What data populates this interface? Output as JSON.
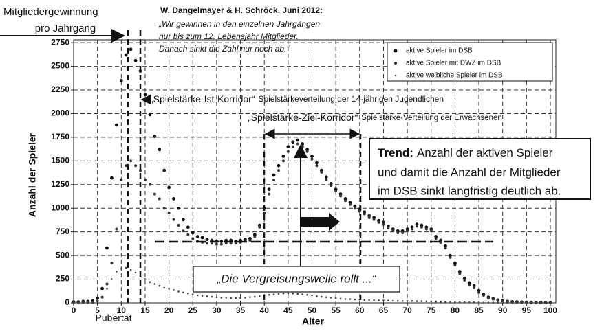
{
  "chart_data": {
    "type": "scatter",
    "header": {
      "line1": "Mitgliedergewinnung",
      "line2": "pro Jahrgang"
    },
    "author": "W. Dangelmayer & H. Schröck, Juni 2012:",
    "quote": [
      "„Wir gewinnen in den einzelnen Jahrgängen",
      "nur bis zum 12. Lebensjahr Mitglieder.",
      "Danach sinkt die Zahl nur noch ab.“"
    ],
    "ist_corridor": {
      "name": "„Spielstärke-Ist-Korridor“",
      "text": "Spielstärkeverteilung der 14-jährigen Jugendlichen"
    },
    "ziel_corridor": {
      "name": "„Spielstärke-Ziel-Korridor“",
      "text": "Spielstärke-Verteilung der Erwachsenen"
    },
    "trend": {
      "label": "Trend:",
      "lines": [
        "Anzahl der aktiven Spieler",
        "und damit die Anzahl der Mitglieder",
        "im DSB sinkt langfristig deutlich ab."
      ]
    },
    "wave": "„Die Vergreisungswelle rollt ...“",
    "puberty": "Pubertät",
    "x_label": "Alter",
    "y_label": "Anzahl der Spieler",
    "xlim": [
      0,
      100
    ],
    "ylim": [
      0,
      2780
    ],
    "xticks": [
      0,
      5,
      10,
      15,
      20,
      25,
      30,
      35,
      40,
      45,
      50,
      55,
      60,
      65,
      70,
      75,
      80,
      85,
      90,
      95,
      100
    ],
    "yticks": [
      0,
      250,
      500,
      750,
      1000,
      1250,
      1500,
      1750,
      2000,
      2250,
      2500,
      2750
    ],
    "grid": true,
    "legend": "upper right",
    "x": [
      0,
      1,
      2,
      3,
      4,
      5,
      6,
      7,
      8,
      9,
      10,
      11,
      12,
      13,
      14,
      15,
      16,
      17,
      18,
      19,
      20,
      21,
      22,
      23,
      24,
      25,
      26,
      27,
      28,
      29,
      30,
      31,
      32,
      33,
      34,
      35,
      36,
      37,
      38,
      39,
      40,
      41,
      42,
      43,
      44,
      45,
      46,
      47,
      48,
      49,
      50,
      51,
      52,
      53,
      54,
      55,
      56,
      57,
      58,
      59,
      60,
      61,
      62,
      63,
      64,
      65,
      66,
      67,
      68,
      69,
      70,
      71,
      72,
      73,
      74,
      75,
      76,
      77,
      78,
      79,
      80,
      81,
      82,
      83,
      84,
      85,
      86,
      87,
      88,
      89,
      90,
      91,
      92,
      93,
      94,
      95,
      96,
      97,
      98,
      99,
      100
    ],
    "series": [
      {
        "name": "aktive Spieler im DSB",
        "color": "#111111",
        "values": [
          10,
          10,
          15,
          15,
          20,
          50,
          150,
          580,
          1320,
          1880,
          2350,
          2620,
          2680,
          2560,
          2450,
          2200,
          1990,
          1760,
          1620,
          1400,
          1220,
          1100,
          1000,
          880,
          800,
          740,
          700,
          690,
          670,
          660,
          650,
          650,
          660,
          660,
          650,
          660,
          670,
          680,
          720,
          820,
          1000,
          1200,
          1350,
          1450,
          1550,
          1650,
          1700,
          1720,
          1680,
          1620,
          1550,
          1480,
          1400,
          1330,
          1260,
          1200,
          1150,
          1100,
          1060,
          1020,
          990,
          960,
          920,
          900,
          870,
          850,
          810,
          780,
          760,
          760,
          780,
          800,
          830,
          820,
          800,
          780,
          700,
          660,
          600,
          500,
          420,
          330,
          260,
          210,
          180,
          130,
          90,
          60,
          45,
          30,
          25,
          15,
          12,
          10,
          8,
          6,
          5,
          4,
          3,
          2,
          2
        ]
      },
      {
        "name": "aktive Spieler mit DWZ im DSB",
        "color": "#333333",
        "values": [
          5,
          5,
          5,
          5,
          5,
          20,
          60,
          200,
          420,
          780,
          1300,
          1450,
          1500,
          1450,
          1400,
          1300,
          1250,
          1150,
          1100,
          1000,
          950,
          880,
          820,
          760,
          720,
          680,
          650,
          640,
          630,
          630,
          620,
          620,
          630,
          630,
          630,
          640,
          650,
          660,
          700,
          800,
          950,
          1150,
          1300,
          1400,
          1500,
          1600,
          1650,
          1680,
          1650,
          1600,
          1520,
          1450,
          1380,
          1300,
          1240,
          1180,
          1130,
          1080,
          1040,
          1000,
          970,
          940,
          900,
          880,
          850,
          830,
          790,
          760,
          740,
          740,
          760,
          780,
          810,
          800,
          780,
          760,
          680,
          640,
          580,
          480,
          400,
          310,
          240,
          190,
          160,
          110,
          80,
          50,
          40,
          25,
          20,
          12,
          10,
          8,
          6,
          5,
          4,
          3,
          2,
          2,
          1
        ]
      },
      {
        "name": "aktive weibliche Spieler im DSB",
        "color": "#444444",
        "values": [
          3,
          3,
          3,
          3,
          3,
          20,
          60,
          150,
          250,
          330,
          360,
          370,
          350,
          320,
          290,
          250,
          220,
          200,
          180,
          160,
          150,
          135,
          120,
          110,
          100,
          90,
          80,
          75,
          70,
          65,
          60,
          55,
          55,
          50,
          50,
          50,
          55,
          60,
          65,
          70,
          80,
          85,
          90,
          95,
          100,
          100,
          100,
          95,
          90,
          85,
          80,
          70,
          65,
          60,
          55,
          50,
          45,
          40,
          40,
          35,
          35,
          30,
          30,
          28,
          26,
          25,
          24,
          22,
          20,
          20,
          20,
          20,
          18,
          18,
          16,
          15,
          14,
          12,
          10,
          9,
          8,
          7,
          6,
          5,
          5,
          4,
          3,
          3,
          2,
          2,
          2,
          1,
          1,
          1,
          1,
          1,
          1,
          1,
          1,
          1,
          1
        ]
      }
    ]
  }
}
